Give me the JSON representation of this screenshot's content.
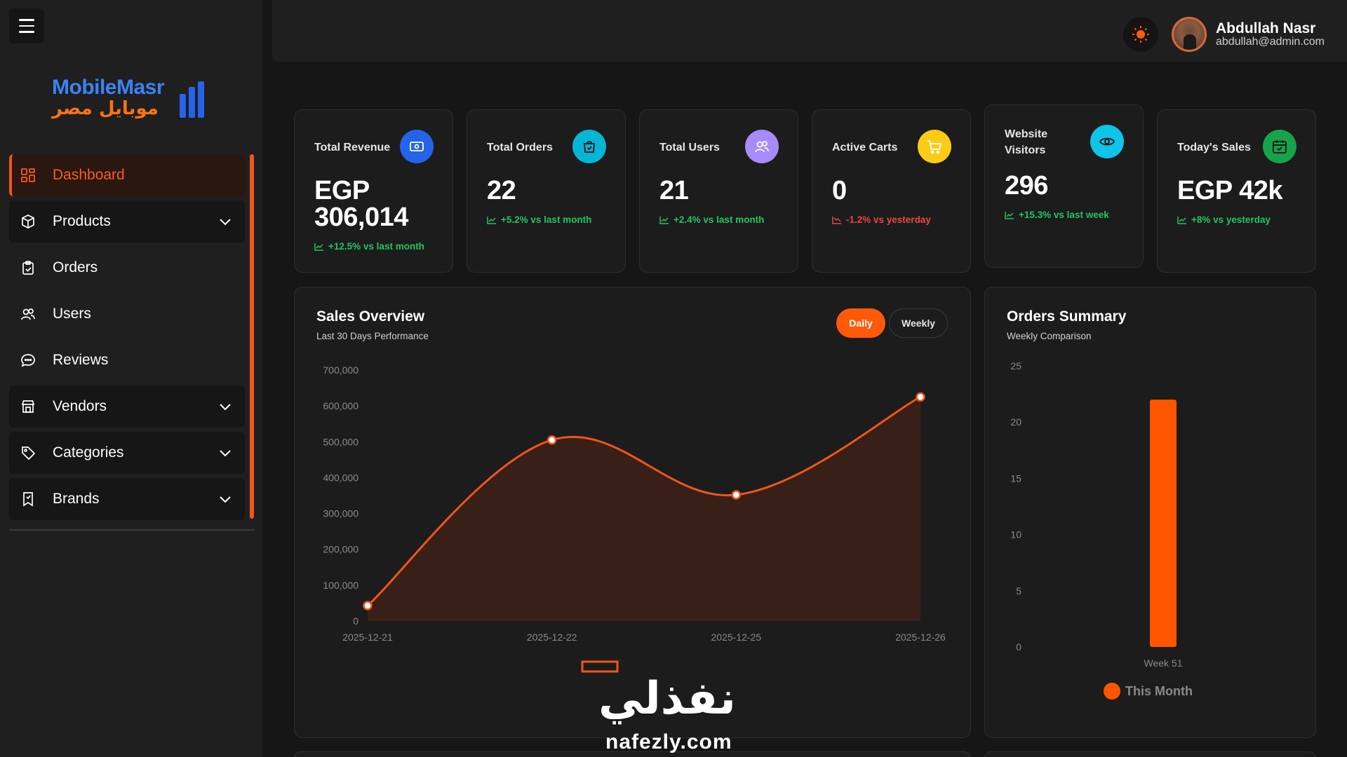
{
  "logo": {
    "en": "MobileMasr",
    "ar": "موبايل مصر"
  },
  "sidebar": {
    "items": [
      {
        "label": "Dashboard",
        "icon": "grid-icon",
        "active": true,
        "expandable": false
      },
      {
        "label": "Products",
        "icon": "box-icon",
        "active": false,
        "expandable": true
      },
      {
        "label": "Orders",
        "icon": "clipboard-check-icon",
        "active": false,
        "expandable": false
      },
      {
        "label": "Users",
        "icon": "users-icon",
        "active": false,
        "expandable": false
      },
      {
        "label": "Reviews",
        "icon": "chat-bubble-icon",
        "active": false,
        "expandable": false
      },
      {
        "label": "Vendors",
        "icon": "store-icon",
        "active": false,
        "expandable": true
      },
      {
        "label": "Categories",
        "icon": "tag-icon",
        "active": false,
        "expandable": true
      },
      {
        "label": "Brands",
        "icon": "bookmark-icon",
        "active": false,
        "expandable": true
      }
    ]
  },
  "header": {
    "user_name": "Abdullah Nasr",
    "user_email": "abdullah@admin.com",
    "theme_icon": "sun-icon"
  },
  "stats": [
    {
      "title": "Total Revenue",
      "value": "EGP 306,014",
      "value_line1": "EGP",
      "value_line2": "306,014",
      "trend": "+12.5% vs last month",
      "direction": "up",
      "icon": "banknote-icon",
      "color": "#2563eb"
    },
    {
      "title": "Total Orders",
      "value": "22",
      "trend": "+5.2% vs last month",
      "direction": "up",
      "icon": "shopping-bag-icon",
      "color": "#06b6d4"
    },
    {
      "title": "Total Users",
      "value": "21",
      "trend": "+2.4% vs last month",
      "direction": "up",
      "icon": "users-icon",
      "color": "#a78bfa"
    },
    {
      "title": "Active Carts",
      "value": "0",
      "trend": "-1.2% vs yesterday",
      "direction": "down",
      "icon": "cart-icon",
      "color": "#facc15"
    },
    {
      "title": "Website Visitors",
      "title_line1": "Website",
      "title_line2": "Visitors",
      "value": "296",
      "trend": "+15.3% vs last week",
      "direction": "up",
      "icon": "eye-icon",
      "color": "#0ec4e8"
    },
    {
      "title": "Today's Sales",
      "value": "EGP 42k",
      "trend": "+8% vs yesterday",
      "direction": "up",
      "icon": "calendar-check-icon",
      "color": "#16a34a"
    }
  ],
  "sales_overview": {
    "title": "Sales Overview",
    "subtitle": "Last 30 Days Performance",
    "toggle": {
      "daily": "Daily",
      "weekly": "Weekly",
      "selected": "Daily"
    }
  },
  "orders_summary": {
    "title": "Orders Summary",
    "subtitle": "Weekly Comparison"
  },
  "chart_data": [
    {
      "type": "area",
      "x": [
        "2025-12-21",
        "2025-12-22",
        "2025-12-25",
        "2025-12-26"
      ],
      "series": [
        {
          "values": [
            43000,
            505000,
            352000,
            625000
          ],
          "color": "#f0541d"
        }
      ],
      "yticks": [
        "0",
        "100,000",
        "200,000",
        "300,000",
        "400,000",
        "500,000",
        "600,000",
        "700,000"
      ],
      "ylim": [
        0,
        700000
      ],
      "grid": false,
      "legend": "bottom-center",
      "xlabel": "",
      "ylabel": ""
    },
    {
      "type": "bar",
      "categories": [
        "Week 51"
      ],
      "series": [
        {
          "name": "This Month",
          "values": [
            22
          ],
          "color": "#ff5500"
        }
      ],
      "yticks": [
        "0",
        "5",
        "10",
        "15",
        "20",
        "25"
      ],
      "ylim": [
        0,
        25
      ],
      "grid": false,
      "legend": "bottom-center",
      "xlabel": "",
      "ylabel": ""
    }
  ],
  "watermark": {
    "ar": "نفذلي",
    "en": "nafezly.com"
  }
}
